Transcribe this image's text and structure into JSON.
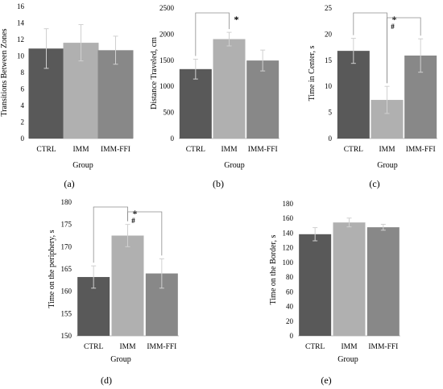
{
  "colors": {
    "CTRL": "#595959",
    "IMM": "#b0b0b0",
    "IMM-FFI": "#888888",
    "axis": "#bfbfbf",
    "errorbar": "#d0d0d0",
    "bracket": "#8c8c8c"
  },
  "chart_data": [
    {
      "panel": "(a)",
      "type": "bar",
      "categories": [
        "CTRL",
        "IMM",
        "IMM-FFI"
      ],
      "values": [
        10.9,
        11.6,
        10.7
      ],
      "errors": [
        2.4,
        2.2,
        1.7
      ],
      "xlabel": "Group",
      "ylabel": "Transitions Between Zones",
      "ylim": [
        0,
        16
      ],
      "yticks": [
        "0",
        "2",
        "4",
        "6",
        "8",
        "10",
        "12",
        "14",
        "16"
      ],
      "brackets": []
    },
    {
      "panel": "(b)",
      "type": "bar",
      "categories": [
        "CTRL",
        "IMM",
        "IMM-FFI"
      ],
      "values": [
        1330,
        1905,
        1495
      ],
      "errors": [
        190,
        130,
        200
      ],
      "xlabel": "Group",
      "ylabel": "Distance Traveled, cm",
      "ylim": [
        0,
        2500
      ],
      "yticks": [
        "0",
        "500",
        "1000",
        "1500",
        "2000",
        "2500"
      ],
      "brackets": [
        {
          "from": 0,
          "to": 1,
          "mark": "*"
        }
      ]
    },
    {
      "panel": "(c)",
      "type": "bar",
      "categories": [
        "CTRL",
        "IMM",
        "IMM-FFI"
      ],
      "values": [
        16.8,
        7.4,
        15.9
      ],
      "errors": [
        2.4,
        2.6,
        3.2
      ],
      "xlabel": "Group",
      "ylabel": "Time in Center, s",
      "ylim": [
        0,
        25
      ],
      "yticks": [
        "0",
        "5",
        "10",
        "15",
        "20",
        "25"
      ],
      "brackets": [
        {
          "from": 0,
          "to": 1,
          "mark": "*"
        },
        {
          "from": 1,
          "to": 2,
          "mark": "#"
        }
      ]
    },
    {
      "panel": "(d)",
      "type": "bar",
      "categories": [
        "CTRL",
        "IMM",
        "IMM-FFI"
      ],
      "values": [
        163.2,
        172.5,
        164.0
      ],
      "errors": [
        2.5,
        2.5,
        3.3
      ],
      "xlabel": "Group",
      "ylabel": "Time on the periphery, s",
      "ylim": [
        150,
        180
      ],
      "yticks": [
        "150",
        "155",
        "160",
        "165",
        "170",
        "175",
        "180"
      ],
      "brackets": [
        {
          "from": 0,
          "to": 1,
          "mark": "*"
        },
        {
          "from": 1,
          "to": 2,
          "mark": "#"
        }
      ]
    },
    {
      "panel": "(e)",
      "type": "bar",
      "categories": [
        "CTRL",
        "IMM",
        "IMM-FFI"
      ],
      "values": [
        138.5,
        154.5,
        148.0
      ],
      "errors": [
        9,
        6,
        4
      ],
      "xlabel": "Group",
      "ylabel": "Time on the Border, s",
      "ylim": [
        0,
        180
      ],
      "yticks": [
        "0",
        "20",
        "40",
        "60",
        "80",
        "100",
        "120",
        "140",
        "160",
        "180"
      ],
      "brackets": []
    }
  ]
}
